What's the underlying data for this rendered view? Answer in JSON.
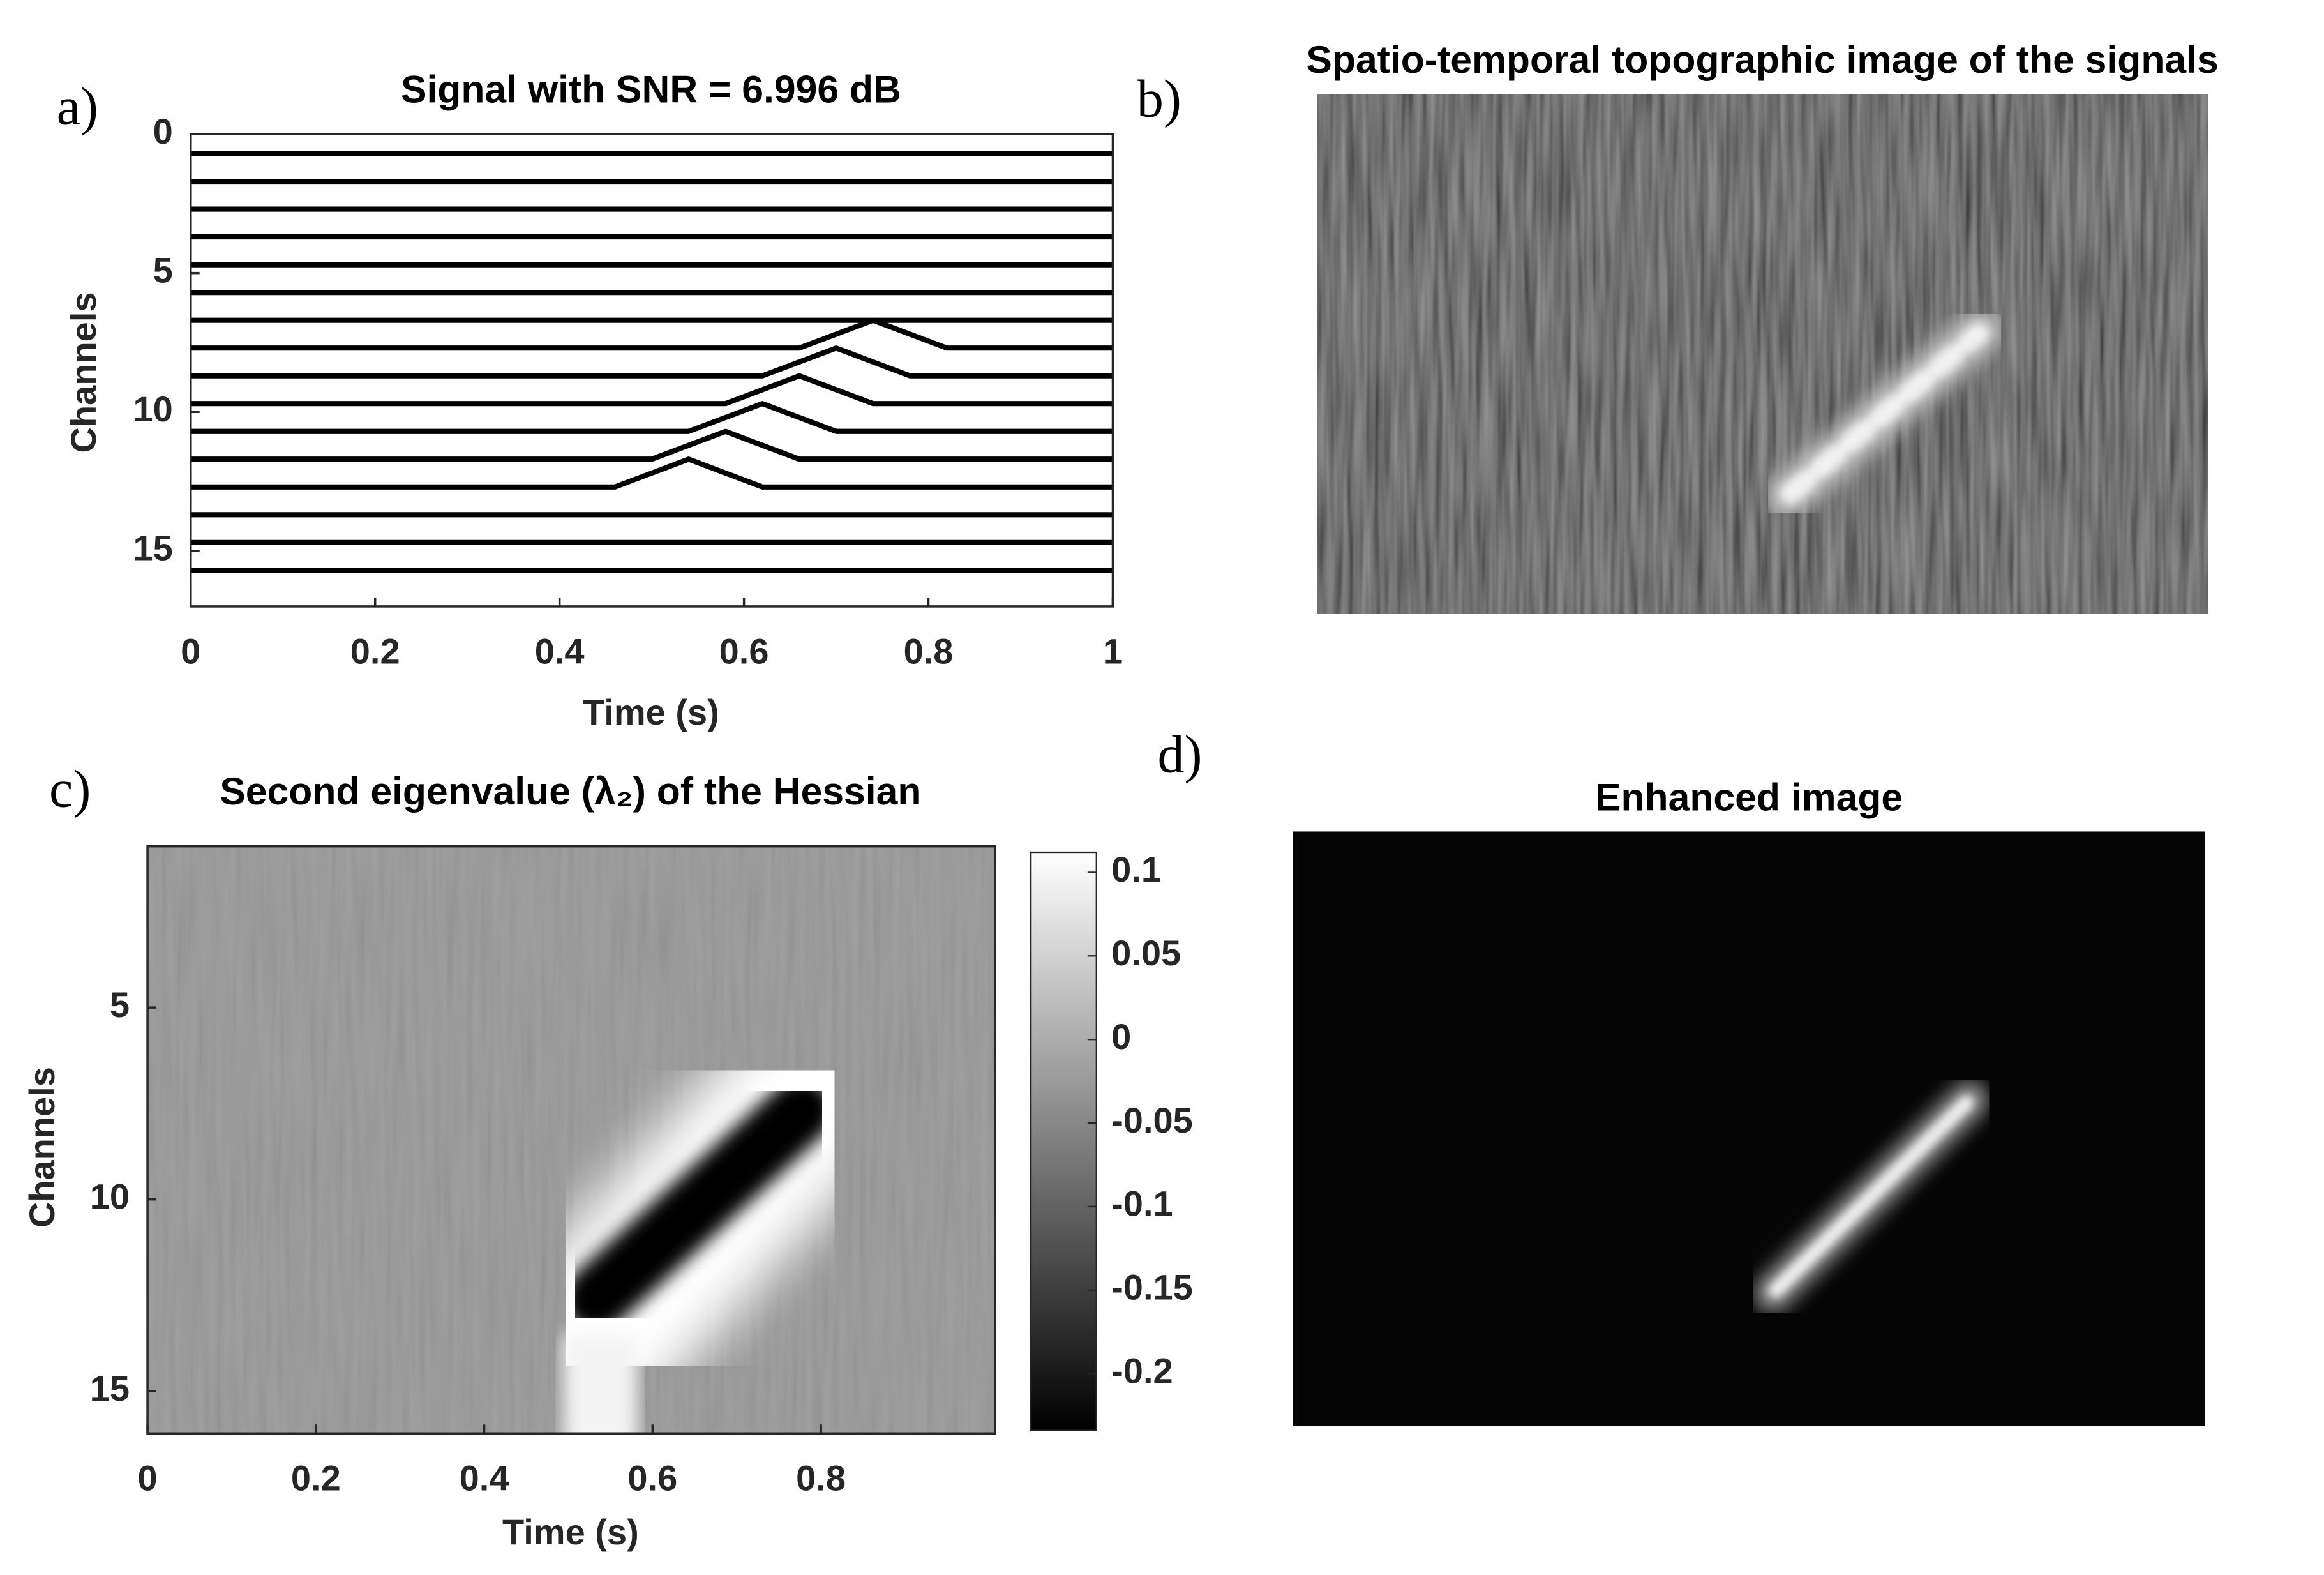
{
  "chart_data": [
    {
      "type": "line",
      "panel_label": "a)",
      "title": "Signal with SNR =  6.996 dB",
      "x_label": "Time (s)",
      "y_label": "Channels",
      "x": [
        0,
        0.46,
        0.5,
        0.54,
        0.58,
        0.62,
        0.66,
        0.7,
        0.74,
        0.78,
        0.82,
        0.86,
        1
      ],
      "color": "#000000",
      "series": [
        {
          "values": [
            0.7,
            0.7,
            0.7,
            0.7,
            0.7,
            0.7,
            0.7,
            0.7,
            0.7,
            0.7,
            0.7,
            0.7,
            0.7
          ]
        },
        {
          "values": [
            1.7,
            1.7,
            1.7,
            1.7,
            1.7,
            1.7,
            1.7,
            1.7,
            1.7,
            1.7,
            1.7,
            1.7,
            1.7
          ]
        },
        {
          "values": [
            2.7,
            2.7,
            2.7,
            2.7,
            2.7,
            2.7,
            2.7,
            2.7,
            2.7,
            2.7,
            2.7,
            2.7,
            2.7
          ]
        },
        {
          "values": [
            3.7,
            3.7,
            3.7,
            3.7,
            3.7,
            3.7,
            3.7,
            3.7,
            3.7,
            3.7,
            3.7,
            3.7,
            3.7
          ]
        },
        {
          "values": [
            4.7,
            4.7,
            4.7,
            4.7,
            4.7,
            4.7,
            4.7,
            4.7,
            4.7,
            4.7,
            4.7,
            4.7,
            4.7
          ]
        },
        {
          "values": [
            5.7,
            5.7,
            5.7,
            5.7,
            5.7,
            5.7,
            5.7,
            5.7,
            5.7,
            5.7,
            5.7,
            5.7,
            5.7
          ]
        },
        {
          "values": [
            6.7,
            6.7,
            6.7,
            6.7,
            6.7,
            6.7,
            6.7,
            6.7,
            6.7,
            6.7,
            6.7,
            6.7,
            6.7
          ]
        },
        {
          "values": [
            7.7,
            7.7,
            7.7,
            7.7,
            7.7,
            7.7,
            7.7,
            7.2,
            6.7,
            7.2,
            7.7,
            7.7,
            7.7
          ]
        },
        {
          "values": [
            8.7,
            8.7,
            8.7,
            8.7,
            8.7,
            8.7,
            8.2,
            7.7,
            8.2,
            8.7,
            8.7,
            8.7,
            8.7
          ]
        },
        {
          "values": [
            9.7,
            9.7,
            9.7,
            9.7,
            9.7,
            9.2,
            8.7,
            9.2,
            9.7,
            9.7,
            9.7,
            9.7,
            9.7
          ]
        },
        {
          "values": [
            10.7,
            10.7,
            10.7,
            10.7,
            10.2,
            9.7,
            10.2,
            10.7,
            10.7,
            10.7,
            10.7,
            10.7,
            10.7
          ]
        },
        {
          "values": [
            11.7,
            11.7,
            11.7,
            11.2,
            10.7,
            11.2,
            11.7,
            11.7,
            11.7,
            11.7,
            11.7,
            11.7,
            11.7
          ]
        },
        {
          "values": [
            12.7,
            12.7,
            12.2,
            11.7,
            12.2,
            12.7,
            12.7,
            12.7,
            12.7,
            12.7,
            12.7,
            12.7,
            12.7
          ]
        },
        {
          "values": [
            13.7,
            13.7,
            13.7,
            13.7,
            13.7,
            13.7,
            13.7,
            13.7,
            13.7,
            13.7,
            13.7,
            13.7,
            13.7
          ]
        },
        {
          "values": [
            14.7,
            14.7,
            14.7,
            14.7,
            14.7,
            14.7,
            14.7,
            14.7,
            14.7,
            14.7,
            14.7,
            14.7,
            14.7
          ]
        },
        {
          "values": [
            15.7,
            15.7,
            15.7,
            15.7,
            15.7,
            15.7,
            15.7,
            15.7,
            15.7,
            15.7,
            15.7,
            15.7,
            15.7
          ]
        }
      ],
      "xlim": [
        0,
        1
      ],
      "xticks": [
        0,
        0.2,
        0.4,
        0.6,
        0.8,
        1
      ],
      "ylim": [
        0,
        17
      ],
      "yticks": [
        0,
        5,
        10,
        15
      ],
      "y_reversed": true
    },
    {
      "type": "image",
      "panel_label": "b)",
      "title": "Spatio-temporal topographic image of the signals"
    },
    {
      "type": "heatmap",
      "panel_label": "c)",
      "title": "Second eigenvalue (λ₂) of the Hessian",
      "x_label": "Time (s)",
      "y_label": "Channels",
      "xlim": [
        0,
        1.007
      ],
      "xticks": [
        0,
        0.2,
        0.4,
        0.6,
        0.8
      ],
      "ylim": [
        0.8,
        16.1
      ],
      "yticks": [
        5,
        10,
        15
      ],
      "y_reversed": true,
      "clim": [
        -0.234,
        0.112
      ],
      "cticks": [
        -0.2,
        -0.15,
        -0.1,
        -0.05,
        0,
        0.05,
        0.1
      ]
    },
    {
      "type": "image",
      "panel_label": "d)",
      "title": "Enhanced image"
    }
  ]
}
